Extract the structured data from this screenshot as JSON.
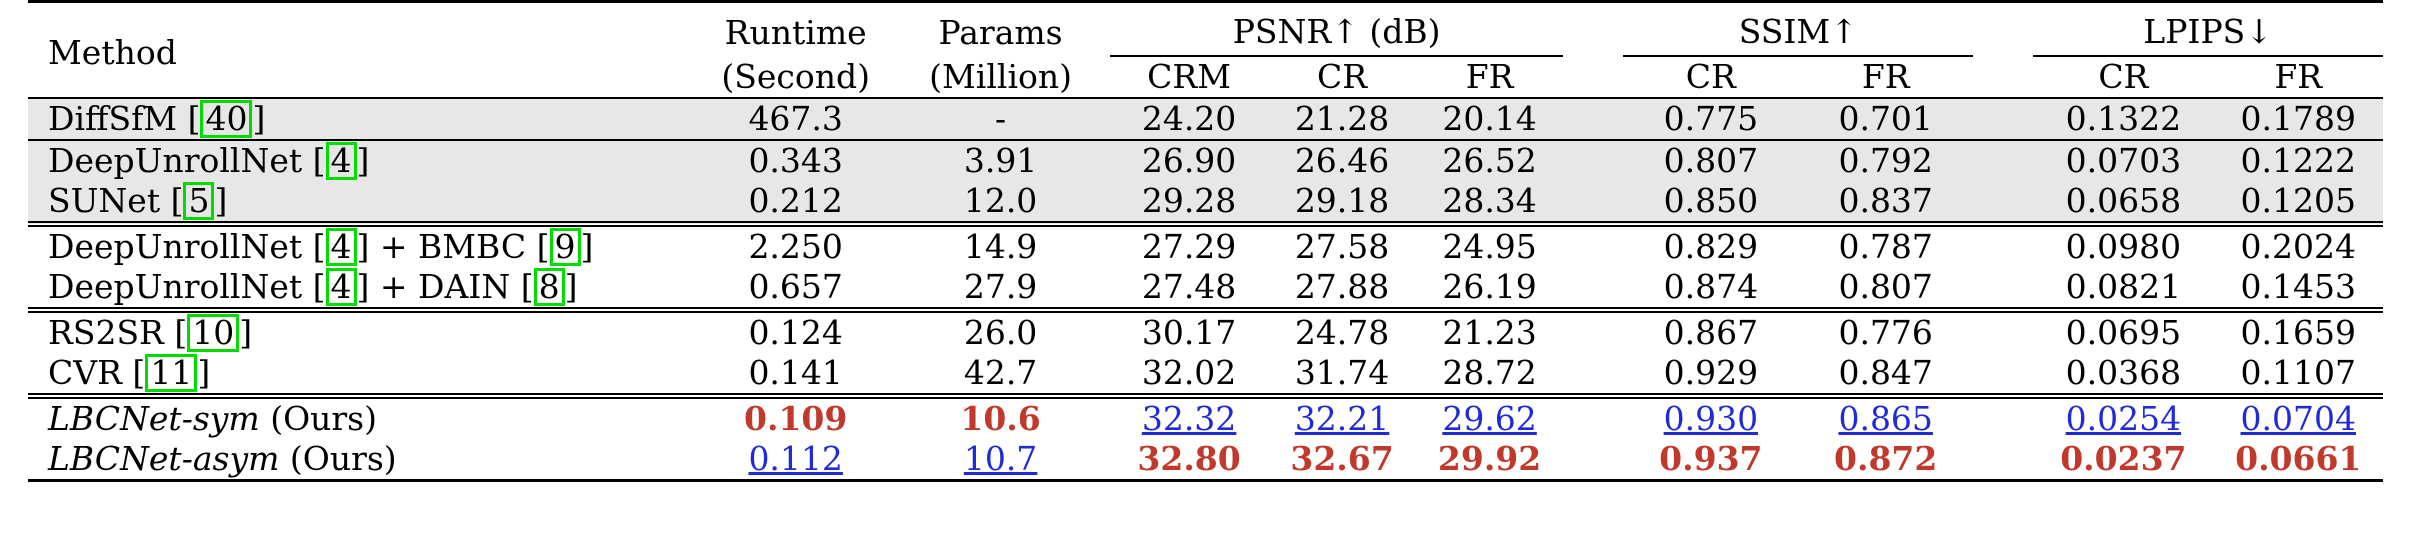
{
  "header": {
    "method": "Method",
    "runtime": [
      "Runtime",
      "(Second)"
    ],
    "params": [
      "Params",
      "(Million)"
    ],
    "psnr": "PSNR↑ (dB)",
    "ssim": "SSIM↑",
    "lpips": "LPIPS↓",
    "psnr_sub": [
      "CRM",
      "CR",
      "FR"
    ],
    "ssim_sub": [
      "CR",
      "FR"
    ],
    "lpips_sub": [
      "CR",
      "FR"
    ]
  },
  "rows": [
    {
      "name": "DiffSfM",
      "cites": [
        "40"
      ],
      "runtime": "467.3",
      "params": "-",
      "psnr": [
        "24.20",
        "21.28",
        "20.14"
      ],
      "ssim": [
        "0.775",
        "0.701"
      ],
      "lpips": [
        "0.1322",
        "0.1789"
      ]
    },
    {
      "name": "DeepUnrollNet",
      "cites": [
        "4"
      ],
      "runtime": "0.343",
      "params": "3.91",
      "psnr": [
        "26.90",
        "26.46",
        "26.52"
      ],
      "ssim": [
        "0.807",
        "0.792"
      ],
      "lpips": [
        "0.0703",
        "0.1222"
      ]
    },
    {
      "name": "SUNet",
      "cites": [
        "5"
      ],
      "runtime": "0.212",
      "params": "12.0",
      "psnr": [
        "29.28",
        "29.18",
        "28.34"
      ],
      "ssim": [
        "0.850",
        "0.837"
      ],
      "lpips": [
        "0.0658",
        "0.1205"
      ]
    },
    {
      "name": "DeepUnrollNet",
      "cites": [
        "4"
      ],
      "suffix": "+ BMBC",
      "cites2": [
        "9"
      ],
      "runtime": "2.250",
      "params": "14.9",
      "psnr": [
        "27.29",
        "27.58",
        "24.95"
      ],
      "ssim": [
        "0.829",
        "0.787"
      ],
      "lpips": [
        "0.0980",
        "0.2024"
      ]
    },
    {
      "name": "DeepUnrollNet",
      "cites": [
        "4"
      ],
      "suffix": "+ DAIN",
      "cites2": [
        "8"
      ],
      "runtime": "0.657",
      "params": "27.9",
      "psnr": [
        "27.48",
        "27.88",
        "26.19"
      ],
      "ssim": [
        "0.874",
        "0.807"
      ],
      "lpips": [
        "0.0821",
        "0.1453"
      ]
    },
    {
      "name": "RS2SR",
      "cites": [
        "10"
      ],
      "runtime": "0.124",
      "params": "26.0",
      "psnr": [
        "30.17",
        "24.78",
        "21.23"
      ],
      "ssim": [
        "0.867",
        "0.776"
      ],
      "lpips": [
        "0.0695",
        "0.1659"
      ]
    },
    {
      "name": "CVR",
      "cites": [
        "11"
      ],
      "runtime": "0.141",
      "params": "42.7",
      "psnr": [
        "32.02",
        "31.74",
        "28.72"
      ],
      "ssim": [
        "0.929",
        "0.847"
      ],
      "lpips": [
        "0.0368",
        "0.1107"
      ]
    },
    {
      "name": "LBCNet-sym",
      "tag": "(Ours)",
      "runtime": "0.109",
      "params": "10.6",
      "psnr": [
        "32.32",
        "32.21",
        "29.62"
      ],
      "ssim": [
        "0.930",
        "0.865"
      ],
      "lpips": [
        "0.0254",
        "0.0704"
      ]
    },
    {
      "name": "LBCNet-asym",
      "tag": "(Ours)",
      "runtime": "0.112",
      "params": "10.7",
      "psnr": [
        "32.80",
        "32.67",
        "29.92"
      ],
      "ssim": [
        "0.937",
        "0.872"
      ],
      "lpips": [
        "0.0237",
        "0.0661"
      ]
    }
  ],
  "styles": {
    "best_color": "#c0392b",
    "second_color": "#1f2bd8",
    "cite_box_color": "#00dc00",
    "gray_row_color": "#e7e7e7"
  }
}
